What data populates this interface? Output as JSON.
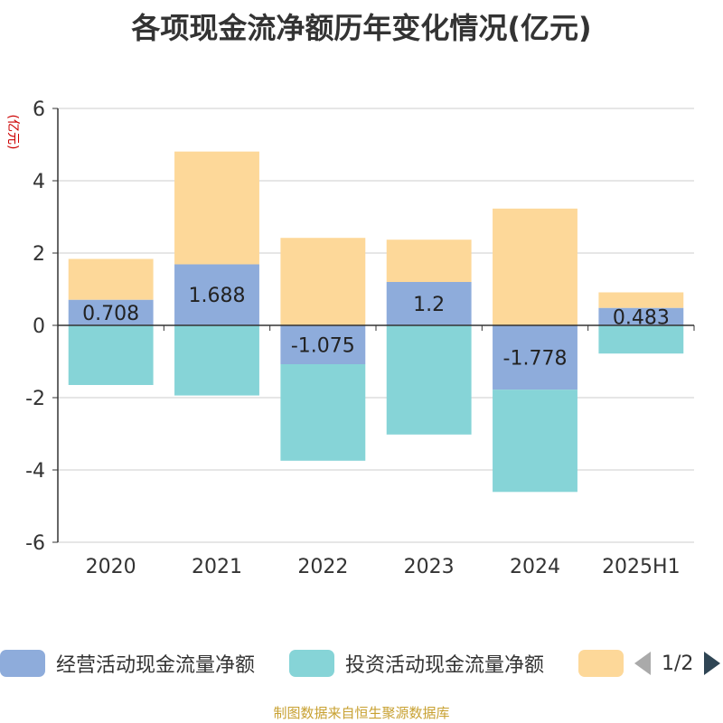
{
  "chart_data": {
    "type": "bar",
    "stacked": true,
    "title": "各项现金流净额历年变化情况(亿元)",
    "ylabel": "(亿元)",
    "ylim": [
      -6,
      6
    ],
    "yticks": [
      -6,
      -4,
      -2,
      0,
      2,
      4,
      6
    ],
    "grid": true,
    "categories": [
      "2020",
      "2021",
      "2022",
      "2023",
      "2024",
      "2025H1"
    ],
    "series": [
      {
        "name": "经营活动现金流量净额",
        "color": "#8eacdb",
        "values": [
          0.708,
          1.688,
          -1.075,
          1.2,
          -1.778,
          0.483
        ],
        "labels": [
          "0.708",
          "1.688",
          "-1.075",
          "1.2",
          "-1.778",
          "0.483"
        ]
      },
      {
        "name": "投资活动现金流量净额",
        "color": "#86d4d7",
        "values": [
          -1.65,
          -1.94,
          -2.67,
          -3.02,
          -2.83,
          -0.78
        ]
      },
      {
        "name": "",
        "color": "#fdd899",
        "values": [
          1.13,
          3.12,
          2.42,
          1.17,
          3.23,
          0.43
        ]
      }
    ],
    "legend_position": "bottom"
  },
  "legend": {
    "page": "1/2"
  },
  "source": "制图数据来自恒生聚源数据库"
}
